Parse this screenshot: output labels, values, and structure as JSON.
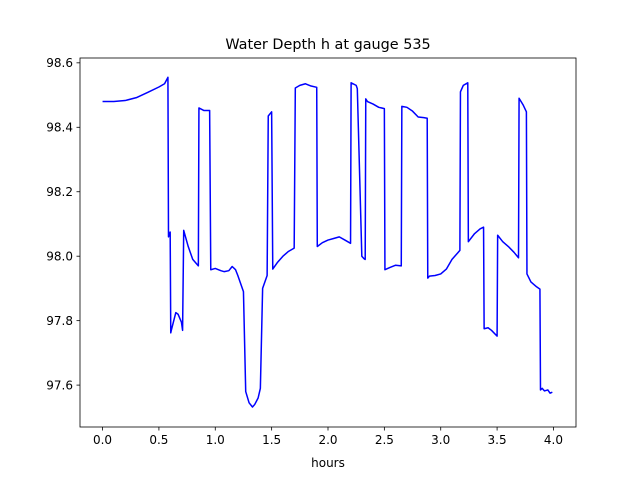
{
  "chart_data": {
    "type": "line",
    "title": "Water Depth h at gauge 535",
    "xlabel": "hours",
    "ylabel": "",
    "xlim": [
      -0.2,
      4.2
    ],
    "ylim": [
      97.47,
      98.615
    ],
    "xticks": [
      0.0,
      0.5,
      1.0,
      1.5,
      2.0,
      2.5,
      3.0,
      3.5,
      4.0
    ],
    "xtick_labels": [
      "0.0",
      "0.5",
      "1.0",
      "1.5",
      "2.0",
      "2.5",
      "3.0",
      "3.5",
      "4.0"
    ],
    "yticks": [
      97.6,
      97.8,
      98.0,
      98.2,
      98.4,
      98.6
    ],
    "ytick_labels": [
      "97.6",
      "97.8",
      "98.0",
      "98.2",
      "98.4",
      "98.6"
    ],
    "grid": false,
    "series": [
      {
        "color": "#0000ff",
        "x": [
          0.0,
          0.1,
          0.2,
          0.3,
          0.4,
          0.5,
          0.55,
          0.58,
          0.585,
          0.6,
          0.605,
          0.61,
          0.65,
          0.67,
          0.7,
          0.71,
          0.72,
          0.76,
          0.8,
          0.85,
          0.855,
          0.9,
          0.95,
          0.96,
          1.0,
          1.05,
          1.08,
          1.12,
          1.15,
          1.18,
          1.2,
          1.25,
          1.27,
          1.3,
          1.33,
          1.35,
          1.38,
          1.4,
          1.42,
          1.46,
          1.47,
          1.5,
          1.51,
          1.55,
          1.6,
          1.65,
          1.7,
          1.71,
          1.75,
          1.8,
          1.85,
          1.9,
          1.905,
          1.95,
          2.0,
          2.05,
          2.1,
          2.15,
          2.2,
          2.205,
          2.25,
          2.26,
          2.3,
          2.32,
          2.33,
          2.335,
          2.35,
          2.4,
          2.45,
          2.5,
          2.505,
          2.55,
          2.6,
          2.65,
          2.655,
          2.7,
          2.75,
          2.8,
          2.85,
          2.88,
          2.885,
          2.9,
          2.95,
          3.0,
          3.05,
          3.1,
          3.15,
          3.17,
          3.175,
          3.2,
          3.24,
          3.245,
          3.3,
          3.35,
          3.38,
          3.385,
          3.42,
          3.45,
          3.5,
          3.505,
          3.55,
          3.6,
          3.65,
          3.69,
          3.695,
          3.73,
          3.76,
          3.765,
          3.8,
          3.85,
          3.88,
          3.885,
          3.9,
          3.92,
          3.95,
          3.97,
          3.99
        ],
        "y": [
          98.48,
          98.48,
          98.483,
          98.492,
          98.508,
          98.525,
          98.535,
          98.555,
          98.06,
          98.075,
          97.762,
          97.77,
          97.825,
          97.82,
          97.795,
          97.77,
          98.08,
          98.03,
          97.99,
          97.97,
          98.46,
          98.452,
          98.452,
          97.958,
          97.962,
          97.955,
          97.952,
          97.955,
          97.968,
          97.958,
          97.94,
          97.89,
          97.58,
          97.545,
          97.532,
          97.54,
          97.56,
          97.59,
          97.9,
          97.94,
          98.435,
          98.448,
          97.96,
          97.98,
          98.0,
          98.015,
          98.025,
          98.522,
          98.53,
          98.535,
          98.528,
          98.524,
          98.03,
          98.042,
          98.05,
          98.055,
          98.06,
          98.05,
          98.04,
          98.538,
          98.53,
          98.52,
          98.0,
          97.992,
          97.99,
          98.488,
          98.48,
          98.472,
          98.462,
          98.458,
          97.958,
          97.965,
          97.972,
          97.97,
          98.465,
          98.462,
          98.45,
          98.432,
          98.43,
          98.428,
          97.932,
          97.938,
          97.94,
          97.945,
          97.96,
          97.99,
          98.01,
          98.018,
          98.51,
          98.53,
          98.538,
          98.045,
          98.07,
          98.085,
          98.09,
          97.775,
          97.778,
          97.77,
          97.752,
          98.065,
          98.045,
          98.03,
          98.012,
          97.995,
          98.49,
          98.47,
          98.448,
          97.945,
          97.92,
          97.905,
          97.898,
          97.585,
          97.59,
          97.582,
          97.585,
          97.575,
          97.578
        ]
      }
    ]
  }
}
